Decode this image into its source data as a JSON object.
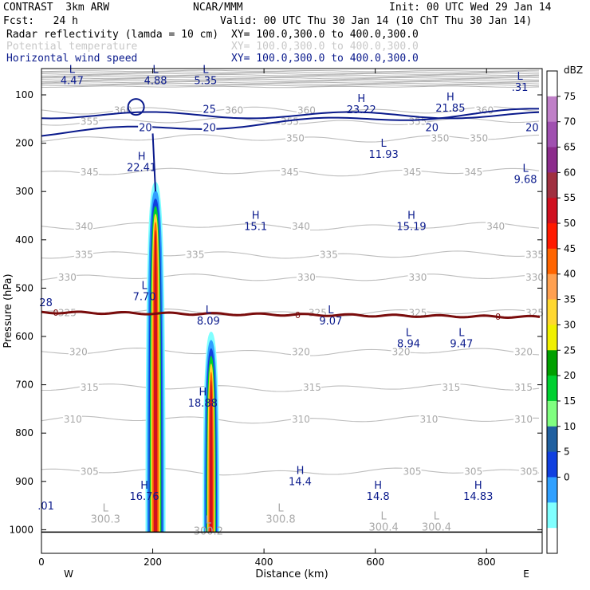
{
  "header": {
    "model": "CONTRAST  3km ARW",
    "center": "NCAR/MMM",
    "init": "Init: 00 UTC Wed 29 Jan 14",
    "fcst": "Fcst:   24 h",
    "valid": "Valid: 00 UTC Thu 30 Jan 14 (10 ChT Thu 30 Jan 14)",
    "fields": [
      {
        "name": "Radar reflectivity (lamda = 10 cm)",
        "xy": "XY= 100.0,300.0 to 400.0,300.0",
        "color": "#000000"
      },
      {
        "name": "Potential temperature",
        "xy": "XY= 100.0,300.0 to 400.0,300.0",
        "color": "#c8c8c8"
      },
      {
        "name": "Horizontal wind speed",
        "xy": "XY= 100.0,300.0 to 400.0,300.0",
        "color": "#0a1a8c"
      }
    ]
  },
  "chart_data": {
    "type": "cross-section",
    "xlabel": "Distance (km)",
    "ylabel": "Pressure (hPa)",
    "xlim": [
      0,
      900
    ],
    "ylim": [
      50,
      1050
    ],
    "x_ticks": [
      "0",
      "200",
      "400",
      "600",
      "800"
    ],
    "y_ticks": [
      "100",
      "200",
      "300",
      "400",
      "500",
      "600",
      "700",
      "800",
      "900",
      "1000"
    ],
    "x_end_labels": {
      "left": "W",
      "right": "E"
    },
    "colorbar": {
      "unit": "dBZ",
      "levels": [
        "75",
        "70",
        "65",
        "60",
        "55",
        "50",
        "45",
        "40",
        "35",
        "30",
        "25",
        "20",
        "15",
        "10",
        "5",
        "0"
      ],
      "colors": [
        "#ffffff",
        "#c080c8",
        "#a050b0",
        "#8c2c8c",
        "#a03040",
        "#d01020",
        "#ff1a00",
        "#ff6400",
        "#ffa050",
        "#ffd830",
        "#f0f000",
        "#00a000",
        "#00d030",
        "#80ff80",
        "#2060a0",
        "#1040e0",
        "#30a0ff",
        "#80ffff",
        "#ffffff"
      ]
    },
    "theta_contours": [
      {
        "value": "360",
        "label_x": [
          130,
          330,
          460,
          780
        ],
        "p": 132
      },
      {
        "value": "355",
        "label_x": [
          70,
          430,
          660
        ],
        "p": 155
      },
      {
        "value": "350",
        "label_x": [
          440,
          700,
          770
        ],
        "p": 190
      },
      {
        "value": "345",
        "label_x": [
          70,
          430,
          650,
          760
        ],
        "p": 260
      },
      {
        "value": "340",
        "label_x": [
          60,
          450,
          800
        ],
        "p": 372
      },
      {
        "value": "335",
        "label_x": [
          60,
          260,
          500,
          870
        ],
        "p": 431
      },
      {
        "value": "330",
        "label_x": [
          30,
          460,
          660,
          870
        ],
        "p": 478
      },
      {
        "value": "325",
        "label_x": [
          30,
          480,
          660,
          870
        ],
        "p": 551
      },
      {
        "value": "320",
        "label_x": [
          50,
          450,
          630,
          850
        ],
        "p": 632
      },
      {
        "value": "315",
        "label_x": [
          70,
          470,
          720,
          850
        ],
        "p": 706
      },
      {
        "value": "310",
        "label_x": [
          40,
          450,
          680,
          850
        ],
        "p": 772
      },
      {
        "value": "305",
        "label_x": [
          70,
          650,
          760,
          860
        ],
        "p": 880
      }
    ],
    "wind_contours": [
      {
        "value": "25",
        "label_x": [
          290
        ],
        "p": 142
      },
      {
        "value": "20",
        "label_x": [
          175,
          290,
          690,
          870
        ],
        "p": 180
      }
    ],
    "zero_line": {
      "value": "0",
      "label_x": [
        25,
        460,
        820
      ],
      "p": 550
    },
    "extrema": [
      {
        "kind": "L",
        "value": "4.47",
        "x": 55,
        "p": 78
      },
      {
        "kind": "L",
        "value": "4.88",
        "x": 205,
        "p": 78
      },
      {
        "kind": "L",
        "value": "5.35",
        "x": 295,
        "p": 78
      },
      {
        "kind": "L",
        "value": ".31",
        "x": 860,
        "p": 92
      },
      {
        "kind": "H",
        "value": "23.22",
        "x": 575,
        "p": 138
      },
      {
        "kind": "H",
        "value": "21.85",
        "x": 735,
        "p": 135
      },
      {
        "kind": "L",
        "value": "11.93",
        "x": 615,
        "p": 230
      },
      {
        "kind": "H",
        "value": "22.41",
        "x": 180,
        "p": 258
      },
      {
        "kind": "L",
        "value": "9.68",
        "x": 870,
        "p": 282
      },
      {
        "kind": "H",
        "value": "15.1",
        "x": 385,
        "p": 380
      },
      {
        "kind": "H",
        "value": "15.19",
        "x": 665,
        "p": 380
      },
      {
        "kind": "L",
        "value": "7.70",
        "x": 185,
        "p": 525
      },
      {
        "kind": "L",
        "value": "8.09",
        "x": 300,
        "p": 575
      },
      {
        "kind": "L",
        "value": "9.07",
        "x": 520,
        "p": 575
      },
      {
        "kind": "L",
        "value": "8.94",
        "x": 660,
        "p": 622
      },
      {
        "kind": "L",
        "value": "9.47",
        "x": 755,
        "p": 622
      },
      {
        "kind": "H",
        "value": "18.88",
        "x": 290,
        "p": 745
      },
      {
        "kind": "H",
        "value": "14.4",
        "x": 465,
        "p": 908
      },
      {
        "kind": "H",
        "value": "16.76",
        "x": 185,
        "p": 938
      },
      {
        "kind": "H",
        "value": "14.8",
        "x": 605,
        "p": 938
      },
      {
        "kind": "H",
        "value": "14.83",
        "x": 785,
        "p": 938
      },
      {
        "kind": "L",
        "value": "300.3",
        "x": 115,
        "p": 985
      },
      {
        "kind": "L",
        "value": "300.8",
        "x": 430,
        "p": 985
      },
      {
        "kind": "L",
        "value": "300.4",
        "x": 615,
        "p": 1002
      },
      {
        "kind": "L",
        "value": "300.4",
        "x": 710,
        "p": 1002
      },
      {
        "kind": "L",
        "value": "300.2",
        "x": 300,
        "p": 1010
      },
      {
        "kind": "",
        "value": ".01",
        "x": 8,
        "p": 958
      },
      {
        "kind": "",
        "value": "28",
        "x": 8,
        "p": 537
      }
    ],
    "cells": [
      {
        "x": 205,
        "top_p": 280,
        "bottom_p": 1005,
        "width_km": 36
      },
      {
        "x": 305,
        "top_p": 590,
        "bottom_p": 1005,
        "width_km": 30
      }
    ]
  }
}
